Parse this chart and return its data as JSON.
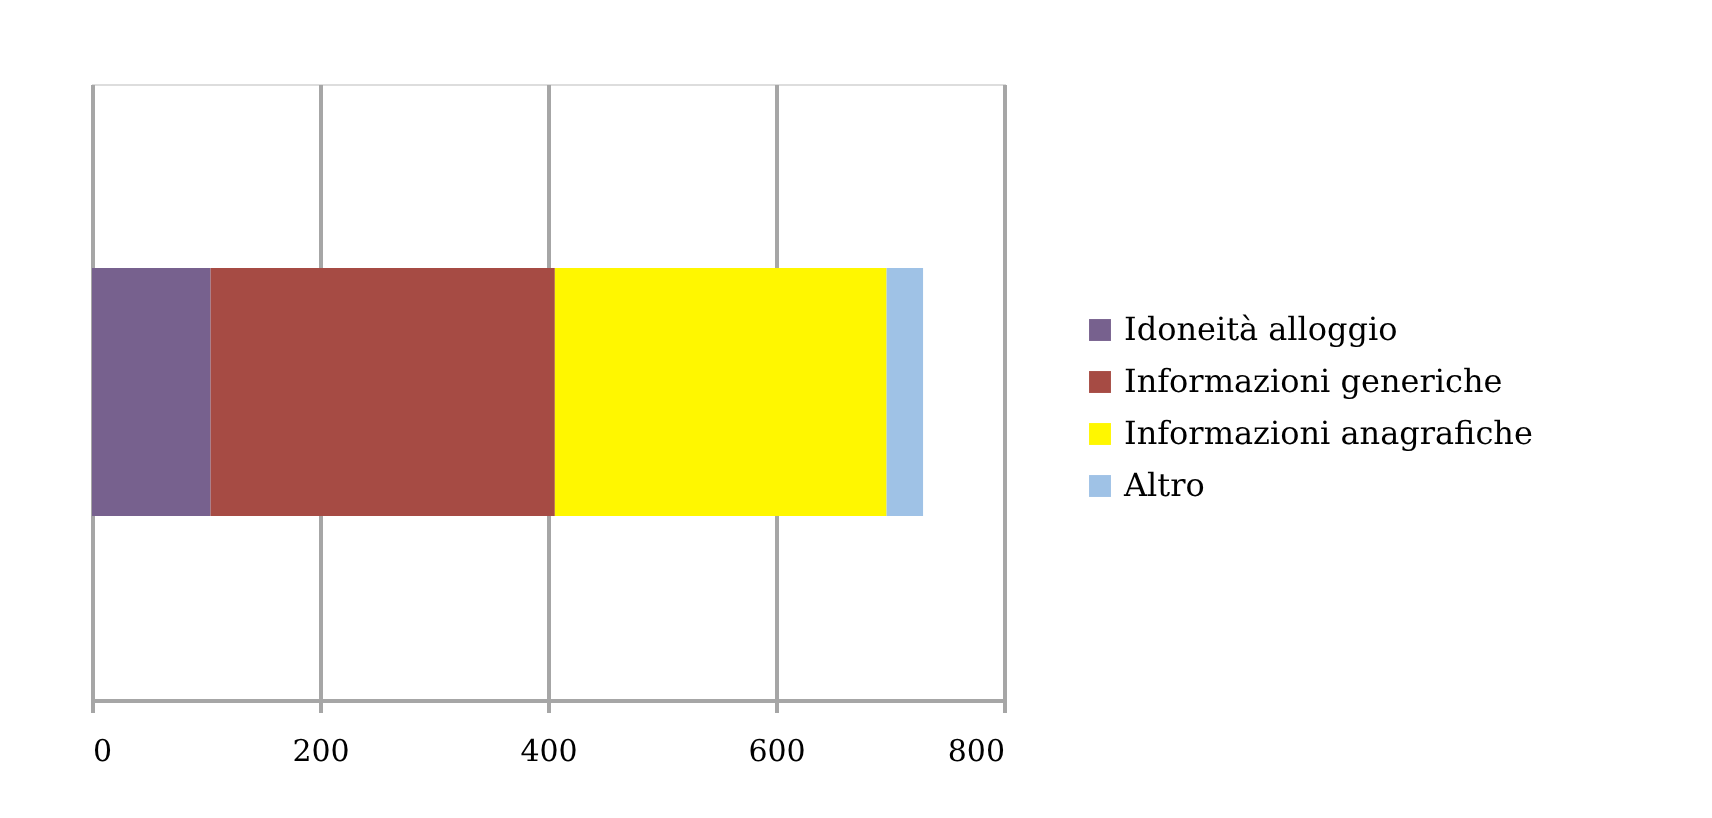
{
  "chart_data": {
    "type": "bar",
    "orientation": "horizontal",
    "stacked": true,
    "categories": [
      null
    ],
    "series": [
      {
        "name": "Idoneità alloggio",
        "color": "#77618e",
        "values": [
          104
        ]
      },
      {
        "name": "Informazioni generiche",
        "color": "#a64b44",
        "values": [
          302
        ]
      },
      {
        "name": "Informazioni anagrafiche",
        "color": "#fff700",
        "values": [
          291
        ]
      },
      {
        "name": "Altro",
        "color": "#9fc2e6",
        "values": [
          32
        ]
      }
    ],
    "xlim": [
      0,
      800
    ],
    "xticks": [
      0,
      200,
      400,
      600,
      800
    ],
    "grid": "x",
    "legend": "right"
  }
}
